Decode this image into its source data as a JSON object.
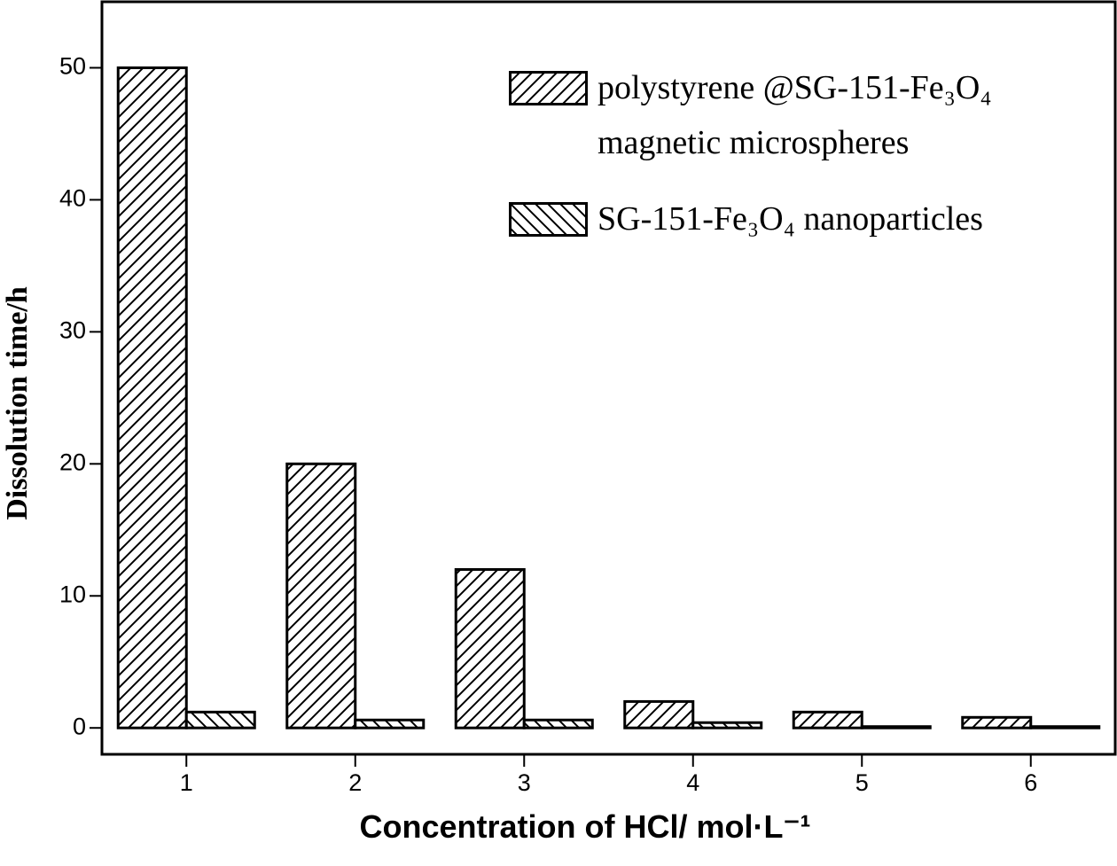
{
  "chart_data": {
    "type": "bar",
    "x_label": "Concentration of HCl/ mol·L⁻¹",
    "y_label": "Dissolution time/h",
    "categories": [
      "1",
      "2",
      "3",
      "4",
      "5",
      "6"
    ],
    "series": [
      {
        "name": "polystyrene @SG-151-Fe₃O₄ magnetic microspheres",
        "color": "#000000",
        "hatch": "/",
        "values": [
          50,
          20,
          12,
          2,
          1.2,
          0.8
        ]
      },
      {
        "name": "SG-151-Fe₃O₄ nanoparticles",
        "color": "#000000",
        "hatch": "\\",
        "values": [
          1.2,
          0.6,
          0.6,
          0.4,
          0.1,
          0.1
        ]
      }
    ],
    "ylim": [
      -2,
      55
    ],
    "yticks": [
      0,
      10,
      20,
      30,
      40,
      50
    ],
    "legend": "upper right"
  }
}
